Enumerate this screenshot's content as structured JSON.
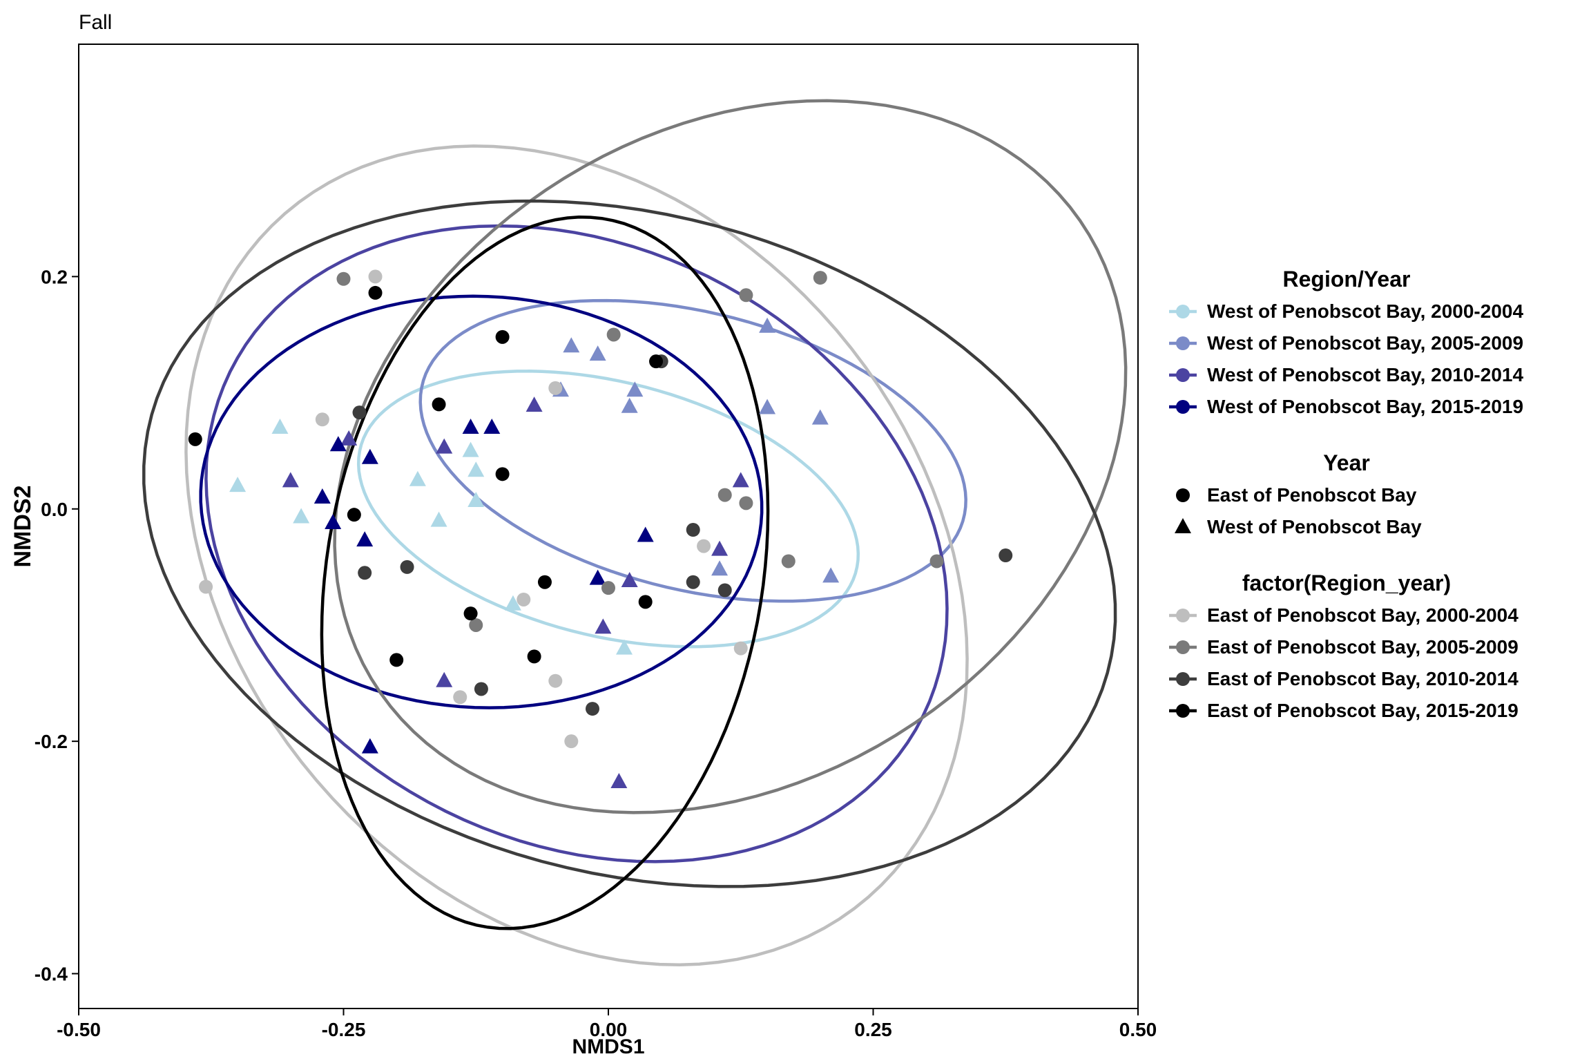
{
  "chart_data": {
    "type": "scatter",
    "title": "Fall",
    "xlabel": "NMDS1",
    "ylabel": "NMDS2",
    "xlim": [
      -0.5,
      0.5
    ],
    "ylim": [
      -0.43,
      0.4
    ],
    "x_ticks": [
      -0.5,
      -0.25,
      0.0,
      0.25,
      0.5
    ],
    "x_tick_labels": [
      "-0.50",
      "-0.25",
      "0.00",
      "0.25",
      "0.50"
    ],
    "y_ticks": [
      -0.4,
      -0.2,
      0.0,
      0.2
    ],
    "y_tick_labels": [
      "-0.4",
      "-0.2",
      "0.0",
      "0.2"
    ],
    "grid": false,
    "legend_position": "right",
    "legends": [
      {
        "title": "Region/Year",
        "kind": "line",
        "items": [
          {
            "label": "West of Penobscot Bay, 2000-2004",
            "color": "#add8e6"
          },
          {
            "label": "West of Penobscot Bay, 2005-2009",
            "color": "#7b8bc8"
          },
          {
            "label": "West of Penobscot Bay, 2010-2014",
            "color": "#4b43a1"
          },
          {
            "label": "West of Penobscot Bay, 2015-2019",
            "color": "#000080"
          }
        ]
      },
      {
        "title": "Year",
        "kind": "shape",
        "items": [
          {
            "label": "East of Penobscot Bay",
            "shape": "circle",
            "color": "#000000"
          },
          {
            "label": "West of Penobscot Bay",
            "shape": "triangle",
            "color": "#000000"
          }
        ]
      },
      {
        "title": "factor(Region_year)",
        "kind": "line",
        "items": [
          {
            "label": "East of Penobscot Bay, 2000-2004",
            "color": "#bebebe"
          },
          {
            "label": "East of Penobscot Bay, 2005-2009",
            "color": "#7a7a7a"
          },
          {
            "label": "East of Penobscot Bay, 2010-2014",
            "color": "#3d3d3d"
          },
          {
            "label": "East of Penobscot Bay, 2015-2019",
            "color": "#000000"
          }
        ]
      }
    ],
    "series": [
      {
        "region": "West of Penobscot Bay",
        "years": "2000-2004",
        "shape": "triangle",
        "color": "#add8e6",
        "points": [
          [
            -0.31,
            0.07
          ],
          [
            -0.35,
            0.02
          ],
          [
            -0.29,
            -0.007
          ],
          [
            -0.18,
            0.025
          ],
          [
            -0.16,
            -0.01
          ],
          [
            -0.13,
            0.05
          ],
          [
            -0.125,
            0.033
          ],
          [
            -0.125,
            0.007
          ],
          [
            -0.09,
            -0.082
          ],
          [
            0.015,
            -0.12
          ]
        ],
        "ellipse": {
          "cx": 0.0,
          "cy": 0.0,
          "rx": 0.24,
          "ry": 0.11,
          "angle_deg": -12
        }
      },
      {
        "region": "West of Penobscot Bay",
        "years": "2005-2009",
        "shape": "triangle",
        "color": "#7b8bc8",
        "points": [
          [
            -0.035,
            0.14
          ],
          [
            -0.045,
            0.102
          ],
          [
            -0.01,
            0.133
          ],
          [
            0.025,
            0.102
          ],
          [
            0.02,
            0.088
          ],
          [
            0.15,
            0.157
          ],
          [
            0.15,
            0.087
          ],
          [
            0.2,
            0.078
          ],
          [
            0.105,
            -0.052
          ],
          [
            0.21,
            -0.058
          ]
        ],
        "ellipse": {
          "cx": 0.08,
          "cy": 0.05,
          "rx": 0.262,
          "ry": 0.12,
          "angle_deg": -12
        }
      },
      {
        "region": "West of Penobscot Bay",
        "years": "2010-2014",
        "shape": "triangle",
        "color": "#4b43a1",
        "points": [
          [
            -0.3,
            0.024
          ],
          [
            -0.245,
            0.06
          ],
          [
            -0.155,
            0.053
          ],
          [
            -0.07,
            0.089
          ],
          [
            0.125,
            0.024
          ],
          [
            0.105,
            -0.035
          ],
          [
            0.02,
            -0.062
          ],
          [
            -0.005,
            -0.102
          ],
          [
            -0.155,
            -0.148
          ],
          [
            0.01,
            -0.235
          ]
        ],
        "ellipse": {
          "cx": -0.03,
          "cy": -0.03,
          "rx": 0.36,
          "ry": 0.26,
          "angle_deg": -20
        }
      },
      {
        "region": "West of Penobscot Bay",
        "years": "2015-2019",
        "shape": "triangle",
        "color": "#000080",
        "points": [
          [
            -0.255,
            0.055
          ],
          [
            -0.225,
            0.044
          ],
          [
            -0.27,
            0.01
          ],
          [
            -0.26,
            -0.012
          ],
          [
            -0.23,
            -0.027
          ],
          [
            -0.13,
            0.07
          ],
          [
            -0.11,
            0.07
          ],
          [
            -0.01,
            -0.06
          ],
          [
            0.035,
            -0.023
          ],
          [
            -0.225,
            -0.205
          ]
        ],
        "ellipse": {
          "cx": -0.12,
          "cy": 0.006,
          "rx": 0.265,
          "ry": 0.177,
          "angle_deg": -2
        }
      },
      {
        "region": "East of Penobscot Bay",
        "years": "2000-2004",
        "shape": "circle",
        "color": "#bebebe",
        "points": [
          [
            -0.22,
            0.2
          ],
          [
            -0.27,
            0.077
          ],
          [
            -0.38,
            -0.067
          ],
          [
            -0.05,
            0.104
          ],
          [
            -0.08,
            -0.078
          ],
          [
            0.09,
            -0.032
          ],
          [
            0.125,
            -0.12
          ],
          [
            -0.035,
            -0.2
          ],
          [
            -0.05,
            -0.148
          ],
          [
            -0.14,
            -0.162
          ]
        ],
        "ellipse": {
          "cx": -0.03,
          "cy": -0.04,
          "rx": 0.405,
          "ry": 0.31,
          "angle_deg": -40
        }
      },
      {
        "region": "East of Penobscot Bay",
        "years": "2005-2009",
        "shape": "circle",
        "color": "#7a7a7a",
        "points": [
          [
            -0.25,
            0.198
          ],
          [
            0.13,
            0.184
          ],
          [
            0.2,
            0.199
          ],
          [
            0.005,
            0.15
          ],
          [
            0.11,
            0.012
          ],
          [
            0.13,
            0.005
          ],
          [
            0.17,
            -0.045
          ],
          [
            0.31,
            -0.045
          ],
          [
            0.0,
            -0.068
          ],
          [
            -0.125,
            -0.1
          ]
        ],
        "ellipse": {
          "cx": 0.115,
          "cy": 0.045,
          "rx": 0.39,
          "ry": 0.285,
          "angle_deg": 25
        }
      },
      {
        "region": "East of Penobscot Bay",
        "years": "2010-2014",
        "shape": "circle",
        "color": "#3d3d3d",
        "points": [
          [
            -0.235,
            0.083
          ],
          [
            -0.23,
            -0.055
          ],
          [
            -0.12,
            -0.155
          ],
          [
            -0.015,
            -0.172
          ],
          [
            0.08,
            -0.063
          ],
          [
            0.11,
            -0.07
          ],
          [
            0.05,
            0.127
          ],
          [
            0.375,
            -0.04
          ],
          [
            0.08,
            -0.018
          ],
          [
            -0.19,
            -0.05
          ]
        ],
        "ellipse": {
          "cx": 0.02,
          "cy": -0.03,
          "rx": 0.465,
          "ry": 0.285,
          "angle_deg": -12
        }
      },
      {
        "region": "East of Penobscot Bay",
        "years": "2015-2019",
        "shape": "circle",
        "color": "#000000",
        "points": [
          [
            -0.39,
            0.06
          ],
          [
            -0.22,
            0.186
          ],
          [
            -0.16,
            0.09
          ],
          [
            -0.1,
            0.148
          ],
          [
            -0.1,
            0.03
          ],
          [
            -0.24,
            -0.005
          ],
          [
            -0.2,
            -0.13
          ],
          [
            -0.13,
            -0.09
          ],
          [
            -0.07,
            -0.127
          ],
          [
            -0.06,
            -0.063
          ],
          [
            0.035,
            -0.08
          ],
          [
            0.045,
            0.127
          ]
        ],
        "ellipse": {
          "cx": -0.06,
          "cy": -0.055,
          "rx": 0.31,
          "ry": 0.205,
          "angle_deg": 78
        }
      }
    ]
  }
}
